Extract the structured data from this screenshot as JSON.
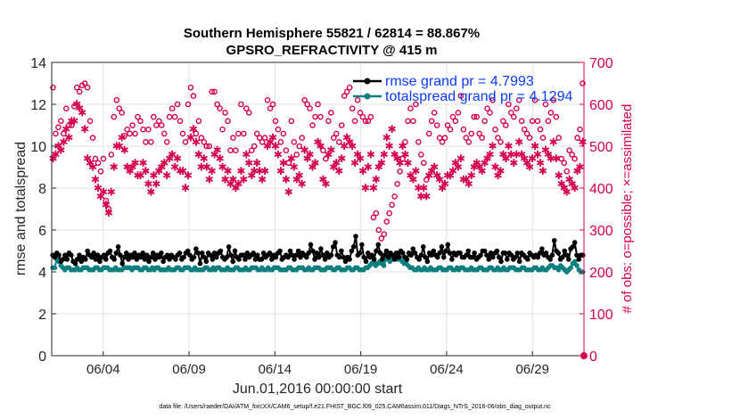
{
  "chart_data": {
    "type": "line",
    "title_line1": "Southern Hemisphere 55821 / 62814 = 88.867%",
    "title_line2": "GPSRO_REFRACTIVITY @ 415 m",
    "xlabel": "Jun.01,2016 00:00:00 start",
    "ylabel_left": "rmse and totalspread",
    "ylabel_right": "# of obs: o=possible; ×=assimilated",
    "footer": "data file: /Users/raeder/DAI/ATM_forcXX/CAM6_setup/f.e21.FHIST_BGC.f09_025.CAM6assim.011/Diags_NTrS_2016-06/obs_diag_output.nc",
    "x_range_days": [
      0,
      31
    ],
    "x_tick_days": [
      3,
      8,
      13,
      18,
      23,
      28
    ],
    "x_tick_labels": [
      "06/04",
      "06/09",
      "06/14",
      "06/19",
      "06/24",
      "06/29"
    ],
    "ylim_left": [
      0,
      14
    ],
    "y_ticks_left": [
      "0",
      "2",
      "4",
      "6",
      "8",
      "10",
      "12",
      "14"
    ],
    "ylim_right": [
      0,
      700
    ],
    "y_ticks_right": [
      "0",
      "100",
      "200",
      "300",
      "400",
      "500",
      "600",
      "700"
    ],
    "grid": true,
    "legend_position": "top-right",
    "colors": {
      "rmse": "#000000",
      "totalspread": "#0d7f7f",
      "obs": "#d6004f",
      "legend_text": "#0a3cff"
    },
    "series": [
      {
        "name": "rmse grand pr = 4.7993",
        "axis": "left",
        "values": [
          4.8,
          4.7,
          4.9,
          4.8,
          4.5,
          4.6,
          4.8,
          4.6,
          4.9,
          4.8,
          4.5,
          4.4,
          4.6,
          4.8,
          4.5,
          4.7,
          4.6,
          5.0,
          4.8,
          4.7,
          4.9,
          4.6,
          4.8,
          4.5,
          4.7,
          4.8,
          4.6,
          4.9,
          5.0,
          4.7,
          4.6,
          4.9,
          5.2,
          4.8,
          4.4,
          4.7,
          4.9,
          4.6,
          4.8,
          4.7,
          4.9,
          4.6,
          4.8,
          4.7,
          4.9,
          4.6,
          4.8,
          4.5,
          4.7,
          4.9,
          4.6,
          4.8,
          4.7,
          4.9,
          4.5,
          4.7,
          4.8,
          4.6,
          4.8,
          4.7,
          4.6,
          4.8,
          4.9,
          4.6,
          4.7,
          4.9,
          5.0,
          4.8,
          4.6,
          4.7,
          5.1,
          4.9,
          4.4,
          4.9,
          4.7,
          4.5,
          4.9,
          4.8,
          4.6,
          4.9,
          4.7,
          4.9,
          5.0,
          4.7,
          4.6,
          4.7,
          5.2,
          4.8,
          4.5,
          5.0,
          4.7,
          4.6,
          4.8,
          4.8,
          4.6,
          4.9,
          4.7,
          4.8,
          4.9,
          4.6,
          4.8,
          4.6,
          4.6,
          4.9,
          4.7,
          4.8,
          4.9,
          4.6,
          4.8,
          4.7,
          4.9,
          5.0,
          4.6,
          4.7,
          4.8,
          4.7,
          5.0,
          4.8,
          4.6,
          4.8,
          5.0,
          4.7,
          4.9,
          4.8,
          4.7,
          4.9,
          5.3,
          5.0,
          4.6,
          4.9,
          4.7,
          5.1,
          4.8,
          4.6,
          4.9,
          4.7,
          4.8,
          5.2,
          5.4,
          4.8,
          4.7,
          5.0,
          4.7,
          4.5,
          4.7,
          4.6,
          5.0,
          5.2,
          5.7,
          4.8,
          4.9,
          5.3,
          4.7,
          4.5,
          4.9,
          4.7,
          4.8,
          4.6,
          5.0,
          5.3,
          4.9,
          4.6,
          4.8,
          5.0,
          4.7,
          4.9,
          4.8,
          4.6,
          4.9,
          4.7,
          5.0,
          4.9,
          4.7,
          4.6,
          4.9,
          4.8,
          5.1,
          4.9,
          4.7,
          4.6,
          4.8,
          5.2,
          4.7,
          4.5,
          4.9,
          4.8,
          5.0,
          4.8,
          4.7,
          4.9,
          5.2,
          4.7,
          5.0,
          5.3,
          4.9,
          4.6,
          4.9,
          4.8,
          4.9,
          4.9,
          4.7,
          4.7,
          4.8,
          5.0,
          4.7,
          4.7,
          4.9,
          4.6,
          4.7,
          4.8,
          5.0,
          5.0,
          4.8,
          4.6,
          4.9,
          4.7,
          4.9,
          5.0,
          4.7,
          4.5,
          4.9,
          4.9,
          4.6,
          4.9,
          4.8,
          4.6,
          4.7,
          4.9,
          4.5,
          4.9,
          4.8,
          4.7,
          4.6,
          4.9,
          4.8,
          4.7,
          4.8,
          4.7,
          4.9,
          5.1,
          4.8,
          4.9,
          4.7,
          4.6,
          4.8,
          5.5,
          5.0,
          4.9,
          4.6,
          4.7,
          5.0,
          4.8,
          4.6,
          5.1,
          5.2,
          5.4,
          4.8,
          4.6,
          4.8,
          4.8
        ]
      },
      {
        "name": "totalspread grand pr = 4.1294",
        "axis": "left",
        "values": [
          4.2,
          4.2,
          4.6,
          4.5,
          4.3,
          4.2,
          4.1,
          4.2,
          4.2,
          4.1,
          4.1,
          4.1,
          4.2,
          4.1,
          4.1,
          4.2,
          4.2,
          4.2,
          4.1,
          4.1,
          4.1,
          4.2,
          4.2,
          4.1,
          4.1,
          4.2,
          4.2,
          4.2,
          4.1,
          4.1,
          4.1,
          4.2,
          4.1,
          4.1,
          4.1,
          4.2,
          4.2,
          4.2,
          4.2,
          4.1,
          4.2,
          4.2,
          4.2,
          4.1,
          4.1,
          4.2,
          4.2,
          4.1,
          4.1,
          4.2,
          4.1,
          4.2,
          4.2,
          4.1,
          4.1,
          4.1,
          4.1,
          4.2,
          4.1,
          4.1,
          4.1,
          4.2,
          4.2,
          4.1,
          4.1,
          4.2,
          4.2,
          4.2,
          4.1,
          4.1,
          4.2,
          4.1,
          4.1,
          4.1,
          4.1,
          4.2,
          4.2,
          4.1,
          4.1,
          4.2,
          4.1,
          4.2,
          4.2,
          4.1,
          4.1,
          4.1,
          4.2,
          4.1,
          4.1,
          4.1,
          4.2,
          4.2,
          4.1,
          4.1,
          4.1,
          4.2,
          4.1,
          4.1,
          4.2,
          4.2,
          4.2,
          4.1,
          4.1,
          4.2,
          4.1,
          4.1,
          4.2,
          4.1,
          4.1,
          4.2,
          4.2,
          4.2,
          4.1,
          4.1,
          4.1,
          4.1,
          4.2,
          4.2,
          4.1,
          4.1,
          4.1,
          4.2,
          4.2,
          4.2,
          4.1,
          4.1,
          4.2,
          4.1,
          4.1,
          4.2,
          4.2,
          4.2,
          4.1,
          4.1,
          4.1,
          4.2,
          4.2,
          4.2,
          4.1,
          4.1,
          4.2,
          4.2,
          4.1,
          4.1,
          4.1,
          4.2,
          4.2,
          4.1,
          4.1,
          4.2,
          4.2,
          4.1,
          4.1,
          4.1,
          4.2,
          4.2,
          4.3,
          4.4,
          4.5,
          4.3,
          4.4,
          4.5,
          4.4,
          4.3,
          4.6,
          4.7,
          4.5,
          4.6,
          4.8,
          4.9,
          4.6,
          4.7,
          4.5,
          4.4,
          4.5,
          4.3,
          4.2,
          4.2,
          4.1,
          4.1,
          4.2,
          4.1,
          4.1,
          4.2,
          4.1,
          4.1,
          4.2,
          4.1,
          4.1,
          4.1,
          4.2,
          4.2,
          4.1,
          4.1,
          4.1,
          4.2,
          4.2,
          4.1,
          4.1,
          4.2,
          4.1,
          4.2,
          4.2,
          4.1,
          4.1,
          4.1,
          4.2,
          4.1,
          4.1,
          4.1,
          4.2,
          4.2,
          4.1,
          4.1,
          4.1,
          4.2,
          4.2,
          4.1,
          4.1,
          4.2,
          4.1,
          4.1,
          4.2,
          4.1,
          4.1,
          4.2,
          4.2,
          4.2,
          4.1,
          4.1,
          4.1,
          4.2,
          4.2,
          4.1,
          4.1,
          4.1,
          4.1,
          4.2,
          4.2,
          4.1,
          4.1,
          4.2,
          4.1,
          4.1,
          4.2,
          4.3,
          4.3,
          4.2,
          4.2,
          4.1,
          4.3,
          4.2,
          4.1,
          4.0,
          4.1,
          4.2,
          4.4,
          4.5,
          4.3,
          4.1,
          4.0,
          4.0
        ]
      },
      {
        "name": "possible obs",
        "axis": "right",
        "values": [
          640,
          530,
          545,
          560,
          530,
          590,
          550,
          550,
          595,
          640,
          630,
          645,
          650,
          640,
          560,
          520,
          470,
          460,
          440,
          470,
          370,
          350,
          480,
          570,
          610,
          590,
          580,
          525,
          540,
          530,
          550,
          530,
          570,
          560,
          540,
          510,
          540,
          510,
          570,
          550,
          560,
          550,
          530,
          510,
          570,
          590,
          570,
          600,
          560,
          530,
          510,
          600,
          640,
          620,
          530,
          560,
          520,
          510,
          500,
          500,
          630,
          630,
          600,
          590,
          540,
          580,
          560,
          490,
          520,
          490,
          530,
          600,
          530,
          590,
          580,
          490,
          500,
          530,
          520,
          510,
          520,
          610,
          590,
          600,
          560,
          540,
          510,
          530,
          490,
          460,
          560,
          510,
          480,
          500,
          520,
          610,
          600,
          590,
          550,
          570,
          600,
          570,
          490,
          470,
          560,
          580,
          520,
          530,
          510,
          550,
          620,
          630,
          640,
          590,
          560,
          610,
          580,
          570,
          560,
          560,
          570,
          330,
          340,
          300,
          280,
          290,
          320,
          340,
          360,
          380,
          410,
          440,
          470,
          510,
          560,
          590,
          560,
          600,
          510,
          480,
          460,
          420,
          530,
          560,
          580,
          550,
          520,
          510,
          520,
          550,
          540,
          570,
          560,
          580,
          620,
          540,
          520,
          510,
          530,
          570,
          570,
          530,
          520,
          560,
          590,
          580,
          610,
          540,
          520,
          510,
          560,
          550,
          600,
          580,
          570,
          590,
          610,
          560,
          540,
          530,
          520,
          560,
          610,
          560,
          540,
          520,
          600,
          560,
          580,
          610,
          570,
          520,
          470,
          460,
          440,
          490,
          480,
          470,
          520,
          540,
          650
        ]
      },
      {
        "name": "assimilated obs",
        "axis": "right",
        "values": [
          470,
          480,
          500,
          490,
          510,
          540,
          520,
          560,
          560,
          600,
          590,
          580,
          540,
          470,
          460,
          450,
          420,
          400,
          380,
          390,
          360,
          340,
          390,
          450,
          500,
          500,
          520,
          490,
          450,
          440,
          450,
          460,
          430,
          430,
          460,
          440,
          410,
          390,
          430,
          410,
          440,
          450,
          460,
          430,
          470,
          480,
          450,
          470,
          440,
          440,
          400,
          430,
          520,
          540,
          510,
          480,
          450,
          470,
          450,
          420,
          440,
          480,
          490,
          470,
          450,
          420,
          440,
          410,
          420,
          400,
          410,
          440,
          420,
          480,
          460,
          430,
          440,
          460,
          440,
          420,
          440,
          500,
          510,
          520,
          500,
          480,
          440,
          460,
          420,
          390,
          470,
          450,
          420,
          430,
          410,
          490,
          470,
          480,
          450,
          460,
          510,
          500,
          420,
          410,
          480,
          490,
          450,
          460,
          440,
          470,
          500,
          520,
          510,
          500,
          460,
          480,
          470,
          440,
          400,
          450,
          480,
          400,
          420,
          450,
          460,
          480,
          520,
          500,
          540,
          480,
          470,
          460,
          500,
          480,
          460,
          430,
          420,
          440,
          400,
          380,
          400,
          380,
          430,
          440,
          450,
          430,
          420,
          400,
          410,
          430,
          430,
          440,
          460,
          450,
          470,
          420,
          420,
          410,
          430,
          450,
          460,
          450,
          440,
          460,
          470,
          480,
          500,
          450,
          430,
          440,
          480,
          470,
          500,
          480,
          460,
          480,
          510,
          480,
          470,
          460,
          450,
          470,
          500,
          480,
          460,
          440,
          490,
          480,
          470,
          510,
          470,
          430,
          410,
          400,
          390,
          420,
          410,
          400,
          440,
          450,
          510
        ]
      }
    ]
  }
}
